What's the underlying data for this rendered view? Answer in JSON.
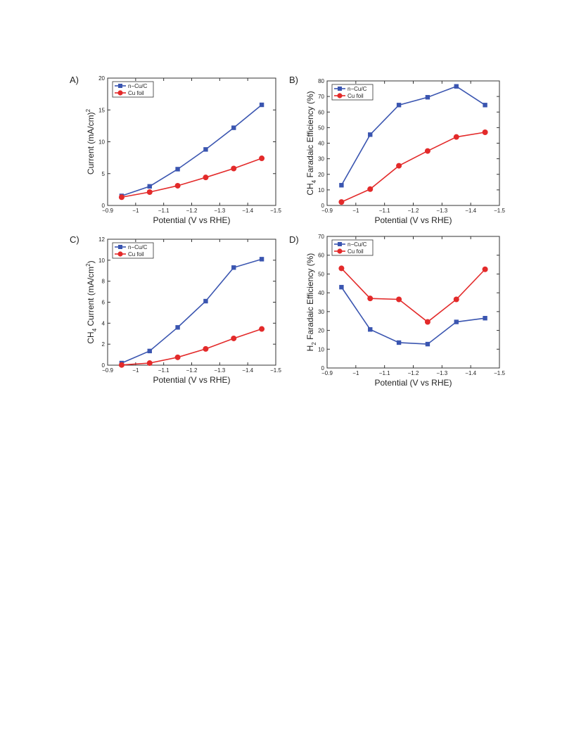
{
  "chart_data": [
    {
      "type": "line",
      "panel_label": "A)",
      "xlabel": "Potential (V vs RHE)",
      "ylabel": "Current (mA/cm",
      "ylabel_sup": "2",
      "ylabel_tail": ")",
      "xlim": [
        -0.9,
        -1.5
      ],
      "ylim": [
        0,
        20
      ],
      "xticks": [
        -0.9,
        -1,
        -1.1,
        -1.2,
        -1.3,
        -1.4,
        -1.5
      ],
      "xtick_labels": [
        "−0.9",
        "−1",
        "−1.1",
        "−1.2",
        "−1.3",
        "−1.4",
        "−1.5"
      ],
      "yticks": [
        0,
        5,
        10,
        15,
        20
      ],
      "ytick_labels": [
        "0",
        "5",
        "10",
        "15",
        "20"
      ],
      "legend_position": "top-left",
      "series": [
        {
          "name": "n−Cu/C",
          "color": "#3a55b0",
          "marker": "square",
          "x": [
            -0.95,
            -1.05,
            -1.15,
            -1.25,
            -1.35,
            -1.45
          ],
          "y": [
            1.5,
            3.0,
            5.7,
            8.8,
            12.2,
            15.8
          ]
        },
        {
          "name": "Cu foil",
          "color": "#e32a2a",
          "marker": "circle",
          "x": [
            -0.95,
            -1.05,
            -1.15,
            -1.25,
            -1.35,
            -1.45
          ],
          "y": [
            1.3,
            2.1,
            3.1,
            4.4,
            5.8,
            7.4
          ]
        }
      ]
    },
    {
      "type": "line",
      "panel_label": "B)",
      "xlabel": "Potential (V vs RHE)",
      "ylabel": "CH",
      "ylabel_sub": "4",
      "ylabel_tail": " Faradaic Efficiency (%)",
      "xlim": [
        -0.9,
        -1.5
      ],
      "ylim": [
        0,
        80
      ],
      "xticks": [
        -0.9,
        -1,
        -1.1,
        -1.2,
        -1.3,
        -1.4,
        -1.5
      ],
      "xtick_labels": [
        "−0.9",
        "−1",
        "−1.1",
        "−1.2",
        "−1.3",
        "−1.4",
        "−1.5"
      ],
      "yticks": [
        0,
        10,
        20,
        30,
        40,
        50,
        60,
        70,
        80
      ],
      "ytick_labels": [
        "0",
        "10",
        "20",
        "30",
        "40",
        "50",
        "60",
        "70",
        "80"
      ],
      "legend_position": "top-left",
      "series": [
        {
          "name": "n−Cu/C",
          "color": "#3a55b0",
          "marker": "square",
          "x": [
            -0.95,
            -1.05,
            -1.15,
            -1.25,
            -1.35,
            -1.45
          ],
          "y": [
            13,
            45.5,
            64.5,
            69.5,
            76.5,
            64.5
          ]
        },
        {
          "name": "Cu foil",
          "color": "#e32a2a",
          "marker": "circle",
          "x": [
            -0.95,
            -1.05,
            -1.15,
            -1.25,
            -1.35,
            -1.45
          ],
          "y": [
            2.2,
            10.5,
            25.5,
            35,
            44,
            47
          ]
        }
      ]
    },
    {
      "type": "line",
      "panel_label": "C)",
      "xlabel": "Potential (V vs RHE)",
      "ylabel": "CH",
      "ylabel_sub": "4",
      "ylabel_tail": " Current (mA/cm",
      "ylabel_sup": "2",
      "ylabel_tail2": ")",
      "xlim": [
        -0.9,
        -1.5
      ],
      "ylim": [
        0,
        12
      ],
      "xticks": [
        -0.9,
        -1,
        -1.1,
        -1.2,
        -1.3,
        -1.4,
        -1.5
      ],
      "xtick_labels": [
        "−0.9",
        "−1",
        "−1.1",
        "−1.2",
        "−1.3",
        "−1.4",
        "−1.5"
      ],
      "yticks": [
        0,
        2,
        4,
        6,
        8,
        10,
        12
      ],
      "ytick_labels": [
        "0",
        "2",
        "4",
        "6",
        "8",
        "10",
        "12"
      ],
      "legend_position": "top-left",
      "series": [
        {
          "name": "n−Cu/C",
          "color": "#3a55b0",
          "marker": "square",
          "x": [
            -0.95,
            -1.05,
            -1.15,
            -1.25,
            -1.35,
            -1.45
          ],
          "y": [
            0.2,
            1.35,
            3.6,
            6.1,
            9.3,
            10.1
          ]
        },
        {
          "name": "Cu foil",
          "color": "#e32a2a",
          "marker": "circle",
          "x": [
            -0.95,
            -1.05,
            -1.15,
            -1.25,
            -1.35,
            -1.45
          ],
          "y": [
            0.02,
            0.2,
            0.75,
            1.55,
            2.55,
            3.45
          ]
        }
      ]
    },
    {
      "type": "line",
      "panel_label": "D)",
      "xlabel": "Potential (V vs RHE)",
      "ylabel": "H",
      "ylabel_sub": "2",
      "ylabel_tail": " Faradaic Efficiency (%)",
      "xlim": [
        -0.9,
        -1.5
      ],
      "ylim": [
        0,
        70
      ],
      "xticks": [
        -0.9,
        -1,
        -1.1,
        -1.2,
        -1.3,
        -1.4,
        -1.5
      ],
      "xtick_labels": [
        "−0.9",
        "−1",
        "−1.1",
        "−1.2",
        "−1.3",
        "−1.4",
        "−1.5"
      ],
      "yticks": [
        0,
        10,
        20,
        30,
        40,
        50,
        60,
        70
      ],
      "ytick_labels": [
        "0",
        "10",
        "20",
        "30",
        "40",
        "50",
        "60",
        "70"
      ],
      "legend_position": "top-left",
      "series": [
        {
          "name": "n−Cu/C",
          "color": "#3a55b0",
          "marker": "square",
          "x": [
            -0.95,
            -1.05,
            -1.15,
            -1.25,
            -1.35,
            -1.45
          ],
          "y": [
            43,
            20.5,
            13.5,
            12.7,
            24.5,
            26.5
          ]
        },
        {
          "name": "Cu foil",
          "color": "#e32a2a",
          "marker": "circle",
          "x": [
            -0.95,
            -1.05,
            -1.15,
            -1.25,
            -1.35,
            -1.45
          ],
          "y": [
            53,
            37,
            36.5,
            24.5,
            36.5,
            52.5
          ]
        }
      ]
    }
  ]
}
